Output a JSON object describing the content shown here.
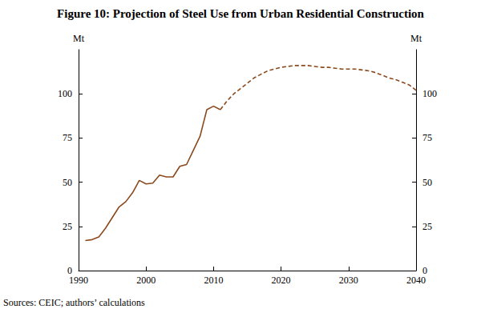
{
  "chart_data": {
    "type": "line",
    "title": "Figure 10: Projection of Steel Use from Urban Residential Construction",
    "source": "Sources: CEIC; authors’ calculations",
    "y_label": "Mt",
    "y2_label": "Mt",
    "x": [
      1991,
      1992,
      1993,
      1994,
      1995,
      1996,
      1997,
      1998,
      1999,
      2000,
      2001,
      2002,
      2003,
      2004,
      2005,
      2006,
      2007,
      2008,
      2009,
      2010,
      2011,
      2012,
      2013,
      2014,
      2015,
      2016,
      2017,
      2018,
      2019,
      2020,
      2021,
      2022,
      2023,
      2024,
      2025,
      2026,
      2027,
      2028,
      2029,
      2030,
      2031,
      2032,
      2033,
      2034,
      2035,
      2036,
      2037,
      2038,
      2039,
      2040
    ],
    "series": [
      {
        "color": "#8b4a1e",
        "line_style": "solid",
        "values": [
          17,
          17.5,
          19,
          24,
          30,
          36,
          39,
          44,
          51,
          49,
          49.5,
          54,
          53,
          53,
          59,
          60,
          68,
          76,
          91,
          93,
          91,
          null,
          null,
          null,
          null,
          null,
          null,
          null,
          null,
          null,
          null,
          null,
          null,
          null,
          null,
          null,
          null,
          null,
          null,
          null,
          null,
          null,
          null,
          null,
          null,
          null,
          null,
          null,
          null,
          null
        ]
      },
      {
        "color": "#8b4a1e",
        "line_style": "dashed",
        "values": [
          null,
          null,
          null,
          null,
          null,
          null,
          null,
          null,
          null,
          null,
          null,
          null,
          null,
          null,
          null,
          null,
          null,
          null,
          null,
          null,
          91,
          96,
          100,
          103,
          106,
          109,
          111,
          113,
          114,
          115,
          115.5,
          116,
          116,
          116,
          115.5,
          115,
          115,
          114.5,
          114,
          114,
          114,
          113.5,
          113,
          112,
          110.5,
          109,
          108,
          106.5,
          105,
          102
        ]
      }
    ],
    "xlim": [
      1990,
      2040
    ],
    "xticks": [
      1990,
      2000,
      2010,
      2020,
      2030,
      2040
    ],
    "ylim": [
      0,
      125
    ],
    "yticks": [
      0,
      25,
      50,
      75,
      100
    ],
    "y2lim": [
      0,
      125
    ],
    "y2ticks": [
      0,
      25,
      50,
      75,
      100
    ],
    "grid": false
  }
}
